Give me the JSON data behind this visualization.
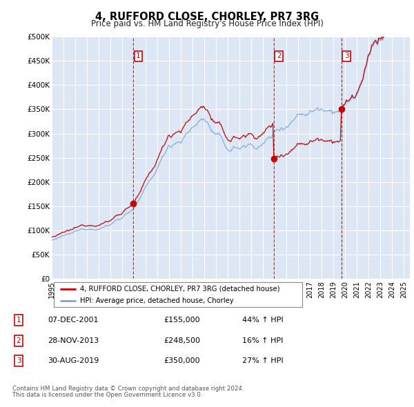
{
  "title": "4, RUFFORD CLOSE, CHORLEY, PR7 3RG",
  "subtitle": "Price paid vs. HM Land Registry's House Price Index (HPI)",
  "bg_color": "#dce6f5",
  "plot_bg_color": "#dce6f5",
  "ylim": [
    0,
    500000
  ],
  "yticks": [
    0,
    50000,
    100000,
    150000,
    200000,
    250000,
    300000,
    350000,
    400000,
    450000,
    500000
  ],
  "ytick_labels": [
    "£0",
    "£50K",
    "£100K",
    "£150K",
    "£200K",
    "£250K",
    "£300K",
    "£350K",
    "£400K",
    "£450K",
    "£500K"
  ],
  "xlim_start": 1995.0,
  "xlim_end": 2025.5,
  "xticks": [
    1995,
    1996,
    1997,
    1998,
    1999,
    2000,
    2001,
    2002,
    2003,
    2004,
    2005,
    2006,
    2007,
    2008,
    2009,
    2010,
    2011,
    2012,
    2013,
    2014,
    2015,
    2016,
    2017,
    2018,
    2019,
    2020,
    2021,
    2022,
    2023,
    2024,
    2025
  ],
  "hpi_color": "#7ba7d4",
  "price_paid_color": "#cc0000",
  "vline_color": "#cc0000",
  "marker_box_color": "#cc0000",
  "transactions": [
    {
      "num": 1,
      "date_str": "07-DEC-2001",
      "date_float": 2001.93,
      "price": 155000,
      "pct": "44%",
      "dir": "↑"
    },
    {
      "num": 2,
      "date_str": "28-NOV-2013",
      "date_float": 2013.91,
      "price": 248500,
      "pct": "16%",
      "dir": "↑"
    },
    {
      "num": 3,
      "date_str": "30-AUG-2019",
      "date_float": 2019.66,
      "price": 350000,
      "pct": "27%",
      "dir": "↑"
    }
  ],
  "table_rows": [
    {
      "num": 1,
      "date": "07-DEC-2001",
      "price": "£155,000",
      "hpi_rel": "44% ↑ HPI"
    },
    {
      "num": 2,
      "date": "28-NOV-2013",
      "price": "£248,500",
      "hpi_rel": "16% ↑ HPI"
    },
    {
      "num": 3,
      "date": "30-AUG-2019",
      "price": "£350,000",
      "hpi_rel": "27% ↑ HPI"
    }
  ],
  "legend_line1": "4, RUFFORD CLOSE, CHORLEY, PR7 3RG (detached house)",
  "legend_line2": "HPI: Average price, detached house, Chorley",
  "footer1": "Contains HM Land Registry data © Crown copyright and database right 2024.",
  "footer2": "This data is licensed under the Open Government Licence v3.0."
}
